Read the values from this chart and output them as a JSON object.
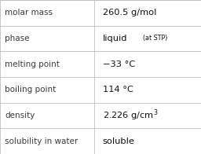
{
  "rows": [
    {
      "label": "molar mass",
      "value": "260.5 g/mol",
      "type": "plain"
    },
    {
      "label": "phase",
      "value": "liquid",
      "value2": "(at STP)",
      "type": "liquid"
    },
    {
      "label": "melting point",
      "value": "−33 °C",
      "type": "plain"
    },
    {
      "label": "boiling point",
      "value": "114 °C",
      "type": "plain"
    },
    {
      "label": "density",
      "value": "2.226 g/cm³",
      "type": "super"
    },
    {
      "label": "solubility in water",
      "value": "soluble",
      "type": "plain"
    }
  ],
  "col_split": 0.47,
  "bg_color": "#ffffff",
  "line_color": "#c0c0c0",
  "label_color": "#3a3a3a",
  "value_color": "#111111",
  "font_size_label": 7.5,
  "font_size_value": 8.2,
  "font_size_small": 5.8
}
